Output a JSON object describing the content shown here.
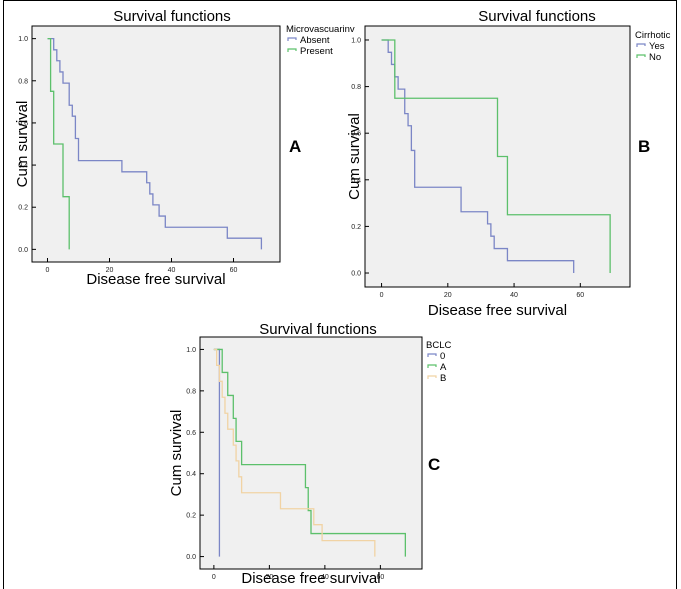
{
  "chart_data": [
    {
      "type": "line",
      "subtype": "kaplan-meier-step",
      "panel_letter": "A",
      "title": "Survival functions",
      "xlabel": "Disease free survival",
      "ylabel": "Cum survival",
      "xlim": [
        -5,
        75
      ],
      "ylim": [
        -0.06,
        1.06
      ],
      "xticks": [
        0,
        20,
        40,
        60
      ],
      "yticks": [
        0.0,
        0.2,
        0.4,
        0.6,
        0.8,
        1.0
      ],
      "xticks_labels": [
        "0",
        "20",
        "40",
        "60"
      ],
      "yticks_labels": [
        "0.0",
        "0.2",
        "0.4",
        "0.6",
        "0.8",
        "1.0"
      ],
      "grid": false,
      "legend": {
        "title": "Microvascuarinv",
        "placement": "top-right"
      },
      "series": [
        {
          "name": "Absent",
          "color": "#7b86c6",
          "times": [
            2,
            3,
            4,
            5,
            7,
            8,
            9,
            10,
            24,
            32,
            33,
            34,
            36,
            38,
            39,
            58,
            69
          ],
          "surv": [
            0.947,
            0.895,
            0.842,
            0.789,
            0.684,
            0.632,
            0.526,
            0.421,
            0.368,
            0.316,
            0.263,
            0.211,
            0.158,
            0.105,
            0.105,
            0.053,
            0.0
          ]
        },
        {
          "name": "Present",
          "color": "#5cc06b",
          "times": [
            1,
            2,
            5,
            7
          ],
          "surv": [
            0.75,
            0.5,
            0.25,
            0.0
          ]
        }
      ]
    },
    {
      "type": "line",
      "subtype": "kaplan-meier-step",
      "panel_letter": "B",
      "title": "Survival functions",
      "xlabel": "Disease free survival",
      "ylabel": "Cum survival",
      "xlim": [
        -5,
        75
      ],
      "ylim": [
        -0.06,
        1.06
      ],
      "xticks": [
        0,
        20,
        40,
        60
      ],
      "yticks": [
        0.0,
        0.2,
        0.4,
        0.6,
        0.8,
        1.0
      ],
      "xticks_labels": [
        "0",
        "20",
        "40",
        "60"
      ],
      "yticks_labels": [
        "0.0",
        "0.2",
        "0.4",
        "0.6",
        "0.8",
        "1.0"
      ],
      "grid": false,
      "legend": {
        "title": "Cirrhotic",
        "placement": "top-right"
      },
      "series": [
        {
          "name": "Yes",
          "color": "#7b86c6",
          "times": [
            2,
            3,
            4,
            5,
            7,
            8,
            9,
            10,
            24,
            32,
            33,
            34,
            38,
            39,
            58
          ],
          "surv": [
            0.947,
            0.895,
            0.842,
            0.789,
            0.684,
            0.632,
            0.526,
            0.368,
            0.263,
            0.211,
            0.158,
            0.105,
            0.053,
            0.053,
            0.0
          ]
        },
        {
          "name": "No",
          "color": "#5cc06b",
          "times": [
            4,
            35,
            38,
            69
          ],
          "surv": [
            0.75,
            0.5,
            0.25,
            0.0
          ]
        }
      ]
    },
    {
      "type": "line",
      "subtype": "kaplan-meier-step",
      "panel_letter": "C",
      "title": "Survival functions",
      "xlabel": "Disease free survival",
      "ylabel": "Cum survival",
      "xlim": [
        -5,
        75
      ],
      "ylim": [
        -0.06,
        1.06
      ],
      "xticks": [
        0,
        20,
        40,
        60
      ],
      "yticks": [
        0.0,
        0.2,
        0.4,
        0.6,
        0.8,
        1.0
      ],
      "xticks_labels": [
        "0",
        "20",
        "40",
        "60"
      ],
      "yticks_labels": [
        "0.0",
        "0.2",
        "0.4",
        "0.6",
        "0.8",
        "1.0"
      ],
      "grid": false,
      "legend": {
        "title": "BCLC",
        "placement": "top-right"
      },
      "series": [
        {
          "name": "0",
          "color": "#7b86c6",
          "times": [
            2
          ],
          "surv": [
            0.0
          ]
        },
        {
          "name": "A",
          "color": "#5cc06b",
          "times": [
            3,
            5,
            7,
            8,
            9,
            10,
            33,
            34,
            35,
            69
          ],
          "surv": [
            0.889,
            0.778,
            0.667,
            0.556,
            0.556,
            0.444,
            0.333,
            0.222,
            0.111,
            0.0
          ]
        },
        {
          "name": "B",
          "color": "#f1d3a4",
          "times": [
            1,
            2,
            3,
            4,
            5,
            7,
            8,
            9,
            10,
            24,
            32,
            36,
            38,
            39,
            58
          ],
          "surv": [
            0.923,
            0.846,
            0.769,
            0.692,
            0.615,
            0.538,
            0.462,
            0.385,
            0.308,
            0.231,
            0.231,
            0.154,
            0.154,
            0.077,
            0.0
          ]
        }
      ]
    }
  ]
}
